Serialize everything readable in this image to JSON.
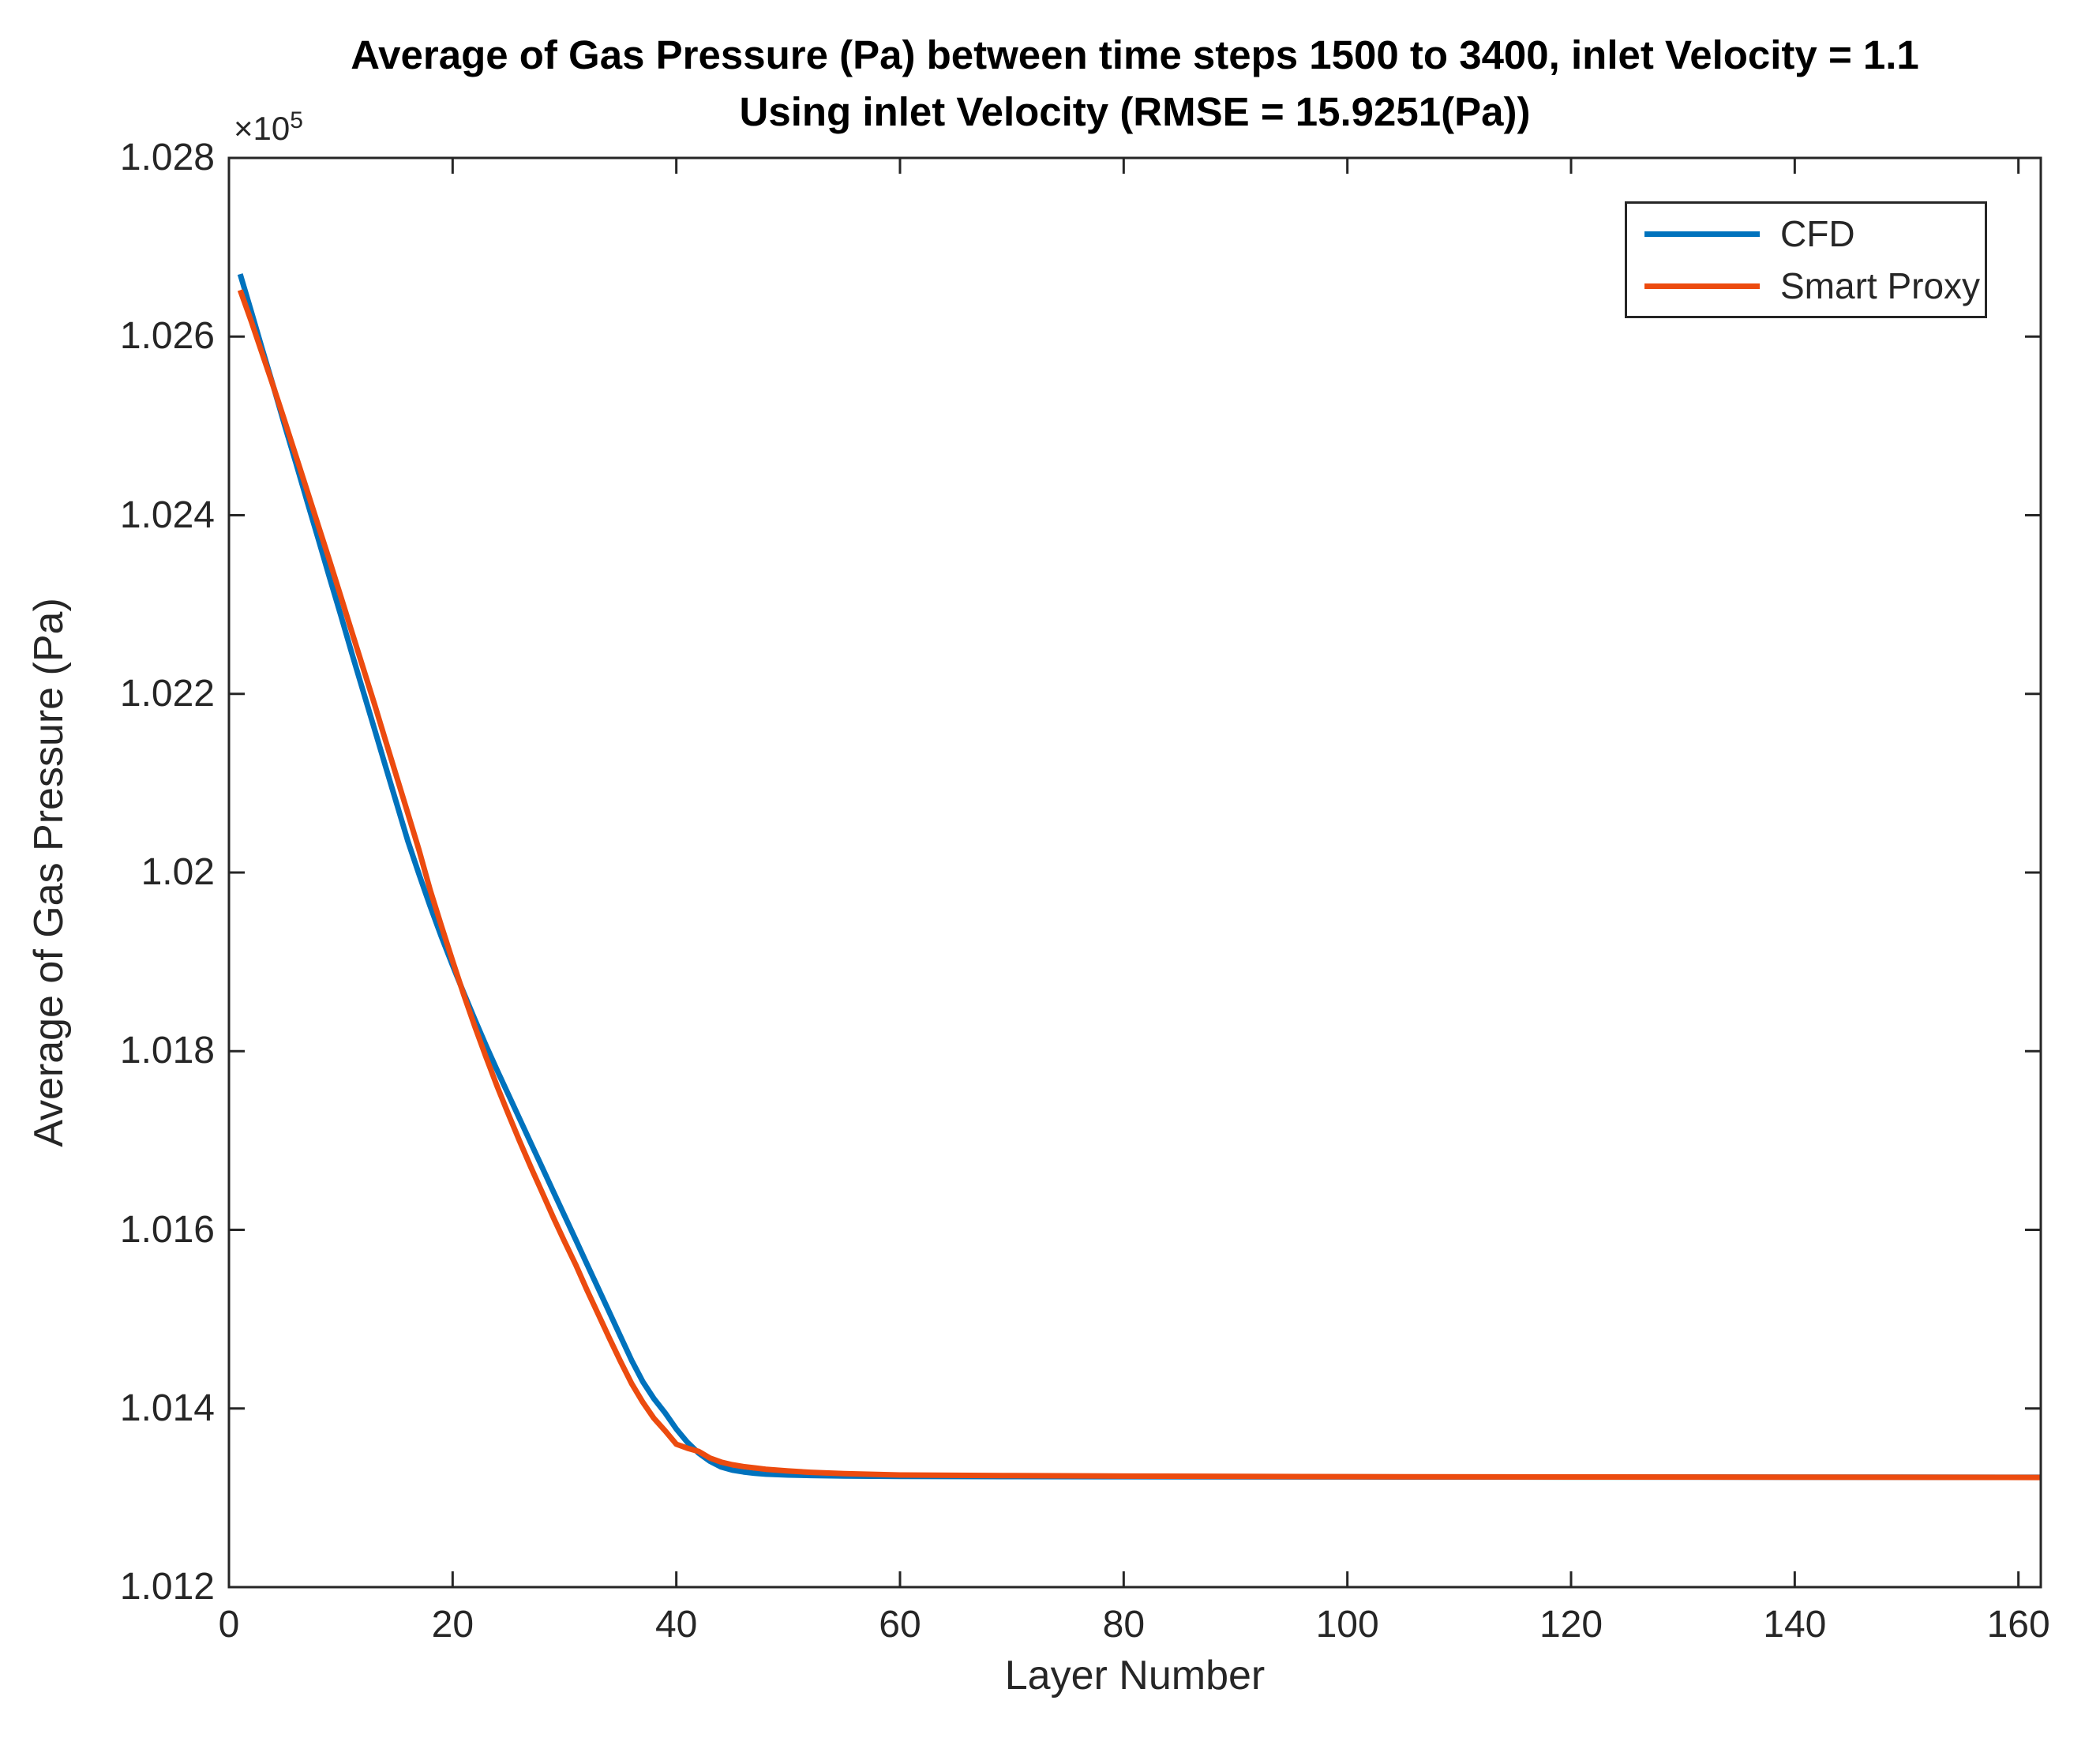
{
  "figure": {
    "title_line1": "Average of Gas Pressure (Pa) between time steps 1500 to 3400, inlet Velocity = 1.1",
    "title_line2": "Using inlet Velocity (RMSE = 15.9251(Pa))",
    "xlabel": "Layer Number",
    "ylabel": "Average of Gas Pressure (Pa)",
    "y_multiplier_base": "×10",
    "y_multiplier_exp": "5",
    "colors": {
      "cfd": "#0072BD",
      "smart_proxy": "#EC4B0F",
      "axis": "#262626",
      "title": "#000000",
      "background": "#FFFFFF"
    }
  },
  "legend": {
    "position": "top-right",
    "items": [
      {
        "label": "CFD",
        "color": "#0072BD"
      },
      {
        "label": "Smart Proxy",
        "color": "#EC4B0F"
      }
    ]
  },
  "chart_data": {
    "type": "line",
    "title": "Average of Gas Pressure (Pa) between time steps 1500 to 3400, inlet Velocity = 1.1",
    "subtitle": "Using inlet Velocity (RMSE = 15.9251(Pa))",
    "xlabel": "Layer Number",
    "ylabel": "Average of Gas Pressure (Pa)",
    "y_units_multiplier": "1e5 Pa",
    "rmse_label": "RMSE = 15.9251(Pa)",
    "grid": "off",
    "xlim": [
      0,
      162
    ],
    "ylim_e5": [
      1.012,
      1.028
    ],
    "xticks": [
      0,
      20,
      40,
      60,
      80,
      100,
      120,
      140,
      160
    ],
    "xtick_labels": [
      "0",
      "20",
      "40",
      "60",
      "80",
      "100",
      "120",
      "140",
      "160"
    ],
    "yticks_e5": [
      1.012,
      1.014,
      1.016,
      1.018,
      1.02,
      1.022,
      1.024,
      1.026,
      1.028
    ],
    "ytick_labels": [
      "1.012",
      "1.014",
      "1.016",
      "1.018",
      "1.02",
      "1.022",
      "1.024",
      "1.026",
      "1.028"
    ],
    "axis_color": "#262626",
    "line_width": 7,
    "series": [
      {
        "name": "CFD",
        "color": "#0072BD",
        "points": [
          [
            1,
            1.0267
          ],
          [
            2,
            1.02628
          ],
          [
            3,
            1.02585
          ],
          [
            4,
            1.02543
          ],
          [
            5,
            1.025
          ],
          [
            6,
            1.02458
          ],
          [
            7,
            1.02415
          ],
          [
            8,
            1.02373
          ],
          [
            9,
            1.0233
          ],
          [
            10,
            1.02288
          ],
          [
            11,
            1.02245
          ],
          [
            12,
            1.02203
          ],
          [
            13,
            1.02161
          ],
          [
            14,
            1.02119
          ],
          [
            15,
            1.02077
          ],
          [
            16,
            1.02035
          ],
          [
            17,
            1.01998
          ],
          [
            18,
            1.01962
          ],
          [
            19,
            1.01928
          ],
          [
            20,
            1.01896
          ],
          [
            21,
            1.01865
          ],
          [
            22,
            1.01835
          ],
          [
            23,
            1.01806
          ],
          [
            24,
            1.01778
          ],
          [
            25,
            1.01751
          ],
          [
            26,
            1.01724
          ],
          [
            27,
            1.01697
          ],
          [
            28,
            1.0167
          ],
          [
            29,
            1.01643
          ],
          [
            30,
            1.01616
          ],
          [
            31,
            1.01589
          ],
          [
            32,
            1.01562
          ],
          [
            33,
            1.01535
          ],
          [
            34,
            1.01508
          ],
          [
            35,
            1.01481
          ],
          [
            36,
            1.01454
          ],
          [
            37,
            1.0143
          ],
          [
            38,
            1.01411
          ],
          [
            39,
            1.01395
          ],
          [
            40,
            1.01377
          ],
          [
            41,
            1.01362
          ],
          [
            42,
            1.0135
          ],
          [
            43,
            1.01341
          ],
          [
            44,
            1.013345
          ],
          [
            45,
            1.01331
          ],
          [
            46,
            1.01329
          ],
          [
            47,
            1.013275
          ],
          [
            48,
            1.013265
          ],
          [
            50,
            1.013255
          ],
          [
            52,
            1.01325
          ],
          [
            55,
            1.013245
          ],
          [
            60,
            1.01324
          ],
          [
            70,
            1.013238
          ],
          [
            80,
            1.013237
          ],
          [
            100,
            1.013234
          ],
          [
            120,
            1.013232
          ],
          [
            140,
            1.013231
          ],
          [
            162,
            1.01323
          ]
        ]
      },
      {
        "name": "Smart Proxy",
        "color": "#EC4B0F",
        "points": [
          [
            1,
            1.02652
          ],
          [
            2,
            1.02617
          ],
          [
            3,
            1.0258
          ],
          [
            4,
            1.02543
          ],
          [
            5,
            1.02505
          ],
          [
            6,
            1.02466
          ],
          [
            7,
            1.02427
          ],
          [
            8,
            1.02388
          ],
          [
            9,
            1.02349
          ],
          [
            10,
            1.02309
          ],
          [
            11,
            1.02269
          ],
          [
            12,
            1.02229
          ],
          [
            13,
            1.02189
          ],
          [
            14,
            1.02148
          ],
          [
            15,
            1.02107
          ],
          [
            16,
            1.02066
          ],
          [
            17,
            1.02025
          ],
          [
            18,
            1.0198
          ],
          [
            19,
            1.0194
          ],
          [
            20,
            1.01901
          ],
          [
            21,
            1.01863
          ],
          [
            22,
            1.01827
          ],
          [
            23,
            1.01793
          ],
          [
            24,
            1.0176
          ],
          [
            25,
            1.01729
          ],
          [
            26,
            1.01699
          ],
          [
            27,
            1.0167
          ],
          [
            28,
            1.01642
          ],
          [
            29,
            1.01614
          ],
          [
            30,
            1.01587
          ],
          [
            31,
            1.01561
          ],
          [
            32,
            1.01533
          ],
          [
            33,
            1.01506
          ],
          [
            34,
            1.01479
          ],
          [
            35,
            1.01453
          ],
          [
            36,
            1.01428
          ],
          [
            37,
            1.01407
          ],
          [
            38,
            1.01389
          ],
          [
            39,
            1.01375
          ],
          [
            40,
            1.0136
          ],
          [
            41,
            1.013555
          ],
          [
            42,
            1.01352
          ],
          [
            43,
            1.013445
          ],
          [
            44,
            1.0134
          ],
          [
            45,
            1.01337
          ],
          [
            46,
            1.01335
          ],
          [
            47,
            1.013335
          ],
          [
            48,
            1.01332
          ],
          [
            50,
            1.0133
          ],
          [
            52,
            1.013285
          ],
          [
            55,
            1.01327
          ],
          [
            60,
            1.013255
          ],
          [
            70,
            1.013248
          ],
          [
            80,
            1.013243
          ],
          [
            100,
            1.013237
          ],
          [
            120,
            1.013233
          ],
          [
            140,
            1.013231
          ],
          [
            162,
            1.013228
          ]
        ]
      }
    ]
  }
}
